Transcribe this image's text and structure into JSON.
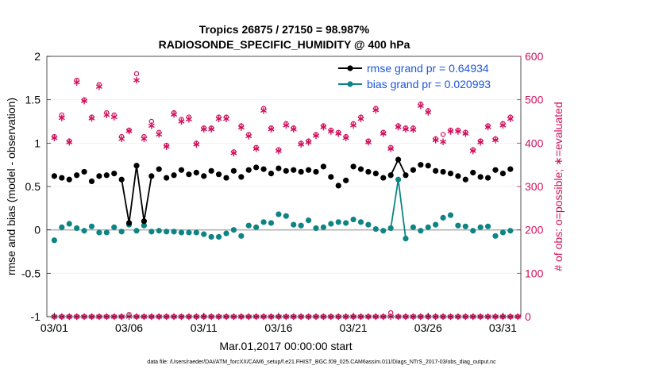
{
  "chart_data": {
    "type": "line",
    "title_line1": "Tropics 26875 / 27150 = 98.987%",
    "title_line2": "RADIOSONDE_SPECIFIC_HUMIDITY @ 400 hPa",
    "xlabel": "Mar.01,2017 00:00:00 start",
    "ylabel_left": "rmse and bias (model - observation)",
    "ylabel_right": "# of obs: o=possible; ∗=evaluated",
    "footnote": "data file: /Users/raeder/DAI/ATM_forcXX/CAM6_setup/f.e21.FHIST_BGC.f09_025.CAM6assim.011/Diags_NTrS_2017-03/obs_diag_output.nc",
    "xlim": [
      0.5,
      32.2
    ],
    "ylim_left": [
      -1,
      2
    ],
    "ylim_right": [
      0,
      600
    ],
    "x_tick_values": [
      1,
      6,
      11,
      16,
      21,
      26,
      31
    ],
    "x_tick_labels": [
      "03/01",
      "03/06",
      "03/11",
      "03/16",
      "03/21",
      "03/26",
      "03/31"
    ],
    "y_left_ticks": [
      "-1",
      "-0.5",
      "0",
      "0.5",
      "1",
      "1.5",
      "2"
    ],
    "y_right_ticks": [
      "0",
      "100",
      "200",
      "300",
      "400",
      "500",
      "600"
    ],
    "legend": {
      "rmse_label": "rmse grand pr = 0.64934",
      "bias_label": "bias grand pr = 0.020993"
    },
    "colors": {
      "rmse": "#000000",
      "bias": "#0e8484",
      "obs": "#d1105c",
      "zero_line": "#b3b3b3"
    },
    "series": [
      {
        "name": "rmse",
        "x": [
          1,
          1.5,
          2,
          2.5,
          3,
          3.5,
          4,
          4.5,
          5,
          5.5,
          6,
          6.5,
          7,
          7.5,
          8,
          8.5,
          9,
          9.5,
          10,
          10.5,
          11,
          11.5,
          12,
          12.5,
          13,
          13.5,
          14,
          14.5,
          15,
          15.5,
          16,
          16.5,
          17,
          17.5,
          18,
          18.5,
          19,
          19.5,
          20,
          20.5,
          21,
          21.5,
          22,
          22.5,
          23,
          23.5,
          24,
          24.5,
          25,
          25.5,
          26,
          26.5,
          27,
          27.5,
          28,
          28.5,
          29,
          29.5,
          30,
          30.5,
          31,
          31.5
        ],
        "values": [
          0.62,
          0.6,
          0.58,
          0.63,
          0.67,
          0.56,
          0.62,
          0.63,
          0.65,
          0.58,
          0.08,
          0.74,
          0.1,
          0.62,
          0.7,
          0.6,
          0.63,
          0.69,
          0.64,
          0.66,
          0.62,
          0.68,
          0.64,
          0.6,
          0.68,
          0.61,
          0.69,
          0.72,
          0.7,
          0.65,
          0.71,
          0.68,
          0.69,
          0.67,
          0.69,
          0.67,
          0.73,
          0.61,
          0.51,
          0.57,
          0.73,
          0.7,
          0.67,
          0.65,
          0.6,
          0.63,
          0.81,
          0.63,
          0.69,
          0.75,
          0.74,
          0.68,
          0.67,
          0.65,
          0.62,
          0.58,
          0.66,
          0.61,
          0.6,
          0.69,
          0.65,
          0.7
        ]
      },
      {
        "name": "bias",
        "x": [
          1,
          1.5,
          2,
          2.5,
          3,
          3.5,
          4,
          4.5,
          5,
          5.5,
          6,
          6.5,
          7,
          7.5,
          8,
          8.5,
          9,
          9.5,
          10,
          10.5,
          11,
          11.5,
          12,
          12.5,
          13,
          13.5,
          14,
          14.5,
          15,
          15.5,
          16,
          16.5,
          17,
          17.5,
          18,
          18.5,
          19,
          19.5,
          20,
          20.5,
          21,
          21.5,
          22,
          22.5,
          23,
          23.5,
          24,
          24.5,
          25,
          25.5,
          26,
          26.5,
          27,
          27.5,
          28,
          28.5,
          29,
          29.5,
          30,
          30.5,
          31,
          31.5
        ],
        "values": [
          -0.12,
          0.03,
          0.07,
          0.02,
          -0.01,
          0.04,
          -0.03,
          -0.03,
          0.03,
          -0.02,
          0.06,
          -0.01,
          0.05,
          -0.02,
          -0.01,
          -0.02,
          -0.02,
          -0.03,
          -0.03,
          -0.03,
          -0.05,
          -0.08,
          -0.08,
          -0.04,
          0.0,
          -0.07,
          0.05,
          0.03,
          0.09,
          0.08,
          0.18,
          0.16,
          0.06,
          0.05,
          0.11,
          0.02,
          0.03,
          0.07,
          0.09,
          0.08,
          0.12,
          0.09,
          0.06,
          0.01,
          -0.01,
          0.02,
          0.58,
          -0.1,
          0.03,
          -0.01,
          0.03,
          0.06,
          0.14,
          0.17,
          0.05,
          0.04,
          -0.01,
          0.03,
          0.04,
          -0.07,
          -0.03,
          -0.01
        ]
      },
      {
        "name": "obs_possible",
        "x": [
          1,
          1.5,
          2,
          2.5,
          3,
          3.5,
          4,
          4.5,
          5,
          5.5,
          6,
          6.5,
          7,
          7.5,
          8,
          8.5,
          9,
          9.5,
          10,
          10.5,
          11,
          11.5,
          12,
          12.5,
          13,
          13.5,
          14,
          14.5,
          15,
          15.5,
          16,
          16.5,
          17,
          17.5,
          18,
          18.5,
          19,
          19.5,
          20,
          20.5,
          21,
          21.5,
          22,
          22.5,
          23,
          23.5,
          24,
          24.5,
          25,
          25.5,
          26,
          26.5,
          27,
          27.5,
          28,
          28.5,
          29,
          29.5,
          30,
          30.5,
          31,
          31.5
        ],
        "values": [
          415,
          465,
          405,
          545,
          500,
          460,
          535,
          470,
          465,
          415,
          430,
          560,
          415,
          450,
          425,
          395,
          470,
          455,
          460,
          400,
          435,
          435,
          460,
          460,
          380,
          440,
          420,
          390,
          480,
          435,
          385,
          445,
          435,
          400,
          405,
          420,
          440,
          430,
          425,
          415,
          445,
          460,
          405,
          480,
          425,
          390,
          440,
          435,
          435,
          490,
          475,
          410,
          420,
          430,
          430,
          425,
          385,
          405,
          440,
          410,
          445,
          460
        ]
      },
      {
        "name": "obs_evaluated",
        "x": [
          1,
          1.5,
          2,
          2.5,
          3,
          3.5,
          4,
          4.5,
          5,
          5.5,
          6,
          6.5,
          7,
          7.5,
          8,
          8.5,
          9,
          9.5,
          10,
          10.5,
          11,
          11.5,
          12,
          12.5,
          13,
          13.5,
          14,
          14.5,
          15,
          15.5,
          16,
          16.5,
          17,
          17.5,
          18,
          18.5,
          19,
          19.5,
          20,
          20.5,
          21,
          21.5,
          22,
          22.5,
          23,
          23.5,
          24,
          24.5,
          25,
          25.5,
          26,
          26.5,
          27,
          27.5,
          28,
          28.5,
          29,
          29.5,
          30,
          30.5,
          31,
          31.5
        ],
        "values": [
          412,
          458,
          402,
          540,
          497,
          457,
          530,
          465,
          460,
          410,
          428,
          545,
          410,
          440,
          420,
          392,
          466,
          450,
          455,
          397,
          432,
          432,
          456,
          456,
          377,
          436,
          416,
          387,
          475,
          432,
          382,
          441,
          432,
          397,
          402,
          417,
          437,
          427,
          422,
          412,
          441,
          456,
          402,
          476,
          422,
          387,
          437,
          432,
          431,
          486,
          471,
          407,
          403,
          427,
          427,
          422,
          382,
          402,
          437,
          407,
          441,
          456
        ]
      }
    ],
    "obs_near_zero": {
      "x_from": 1,
      "x_to": 32,
      "step": 0.5,
      "value": 0,
      "spikes": [
        {
          "x": 6,
          "value": 5
        },
        {
          "x": 23.5,
          "value": 9
        }
      ]
    }
  }
}
